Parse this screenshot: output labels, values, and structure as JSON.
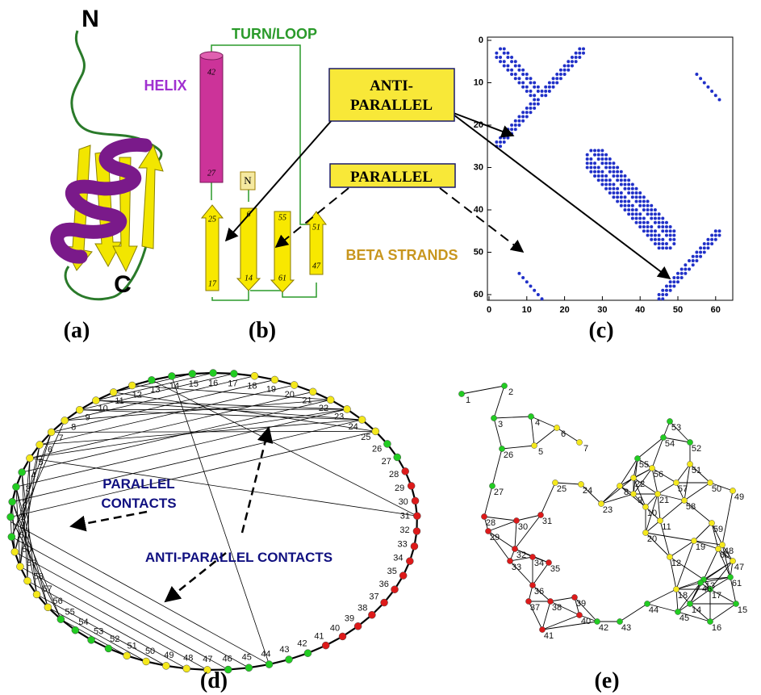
{
  "panels": {
    "a": {
      "label": "(a)",
      "n_terminus": "N",
      "c_terminus": "C",
      "helix": "HELIX"
    },
    "b": {
      "label": "(b)",
      "turn_loop": "TURN/LOOP",
      "helix_top": "42",
      "helix_bottom": "27",
      "n_box": "N",
      "strand_1_top": "25",
      "strand_1_bottom": "17",
      "strand_2_top": "6",
      "strand_2_bottom": "14",
      "strand_3_top": "55",
      "strand_3_bottom": "61",
      "strand_4_top": "51",
      "strand_4_bottom": "47",
      "beta_strands": "BETA STRANDS"
    },
    "c": {
      "label": "(c)",
      "antiparallel_box": [
        "ANTI-",
        "PARALLEL"
      ],
      "parallel_box": "PARALLEL",
      "xticks": [
        0,
        10,
        20,
        30,
        40,
        50,
        60
      ],
      "yticks": [
        0,
        10,
        20,
        30,
        40,
        50,
        60
      ]
    },
    "d": {
      "label": "(d)",
      "parallel_contacts": [
        "PARALLEL",
        "CONTACTS"
      ],
      "antiparallel_contacts": "ANTI-PARALLEL CONTACTS"
    },
    "e": {
      "label": "(e)"
    }
  },
  "residues": [
    {
      "label": "1",
      "color": "green"
    },
    {
      "label": "2",
      "color": "green"
    },
    {
      "label": "3",
      "color": "green"
    },
    {
      "label": "4",
      "color": "green"
    },
    {
      "label": "5",
      "color": "yellow"
    },
    {
      "label": "6",
      "color": "yellow"
    },
    {
      "label": "7",
      "color": "yellow"
    },
    {
      "label": "8",
      "color": "yellow"
    },
    {
      "label": "9",
      "color": "yellow"
    },
    {
      "label": "10",
      "color": "yellow"
    },
    {
      "label": "11",
      "color": "yellow"
    },
    {
      "label": "12",
      "color": "yellow"
    },
    {
      "label": "13",
      "color": "green"
    },
    {
      "label": "14",
      "color": "green"
    },
    {
      "label": "15",
      "color": "green"
    },
    {
      "label": "16",
      "color": "green"
    },
    {
      "label": "17",
      "color": "green"
    },
    {
      "label": "18",
      "color": "yellow"
    },
    {
      "label": "19",
      "color": "yellow"
    },
    {
      "label": "20",
      "color": "yellow"
    },
    {
      "label": "21",
      "color": "yellow"
    },
    {
      "label": "22",
      "color": "yellow"
    },
    {
      "label": "23",
      "color": "yellow"
    },
    {
      "label": "24",
      "color": "yellow"
    },
    {
      "label": "25",
      "color": "yellow"
    },
    {
      "label": "26",
      "color": "green"
    },
    {
      "label": "27",
      "color": "green"
    },
    {
      "label": "28",
      "color": "red"
    },
    {
      "label": "29",
      "color": "red"
    },
    {
      "label": "30",
      "color": "red"
    },
    {
      "label": "31",
      "color": "red"
    },
    {
      "label": "32",
      "color": "red"
    },
    {
      "label": "33",
      "color": "red"
    },
    {
      "label": "34",
      "color": "red"
    },
    {
      "label": "35",
      "color": "red"
    },
    {
      "label": "36",
      "color": "red"
    },
    {
      "label": "37",
      "color": "red"
    },
    {
      "label": "38",
      "color": "red"
    },
    {
      "label": "39",
      "color": "red"
    },
    {
      "label": "40",
      "color": "red"
    },
    {
      "label": "41",
      "color": "red"
    },
    {
      "label": "42",
      "color": "green"
    },
    {
      "label": "43",
      "color": "green"
    },
    {
      "label": "44",
      "color": "green"
    },
    {
      "label": "45",
      "color": "green"
    },
    {
      "label": "46",
      "color": "green"
    },
    {
      "label": "47",
      "color": "yellow"
    },
    {
      "label": "48",
      "color": "yellow"
    },
    {
      "label": "49",
      "color": "yellow"
    },
    {
      "label": "50",
      "color": "yellow"
    },
    {
      "label": "51",
      "color": "yellow"
    },
    {
      "label": "52",
      "color": "green"
    },
    {
      "label": "53",
      "color": "green"
    },
    {
      "label": "54",
      "color": "green"
    },
    {
      "label": "55",
      "color": "green"
    },
    {
      "label": "56",
      "color": "yellow"
    },
    {
      "label": "57",
      "color": "yellow"
    },
    {
      "label": "58",
      "color": "yellow"
    },
    {
      "label": "59",
      "color": "yellow"
    },
    {
      "label": "60",
      "color": "yellow"
    },
    {
      "label": "61",
      "color": "green"
    }
  ]
}
